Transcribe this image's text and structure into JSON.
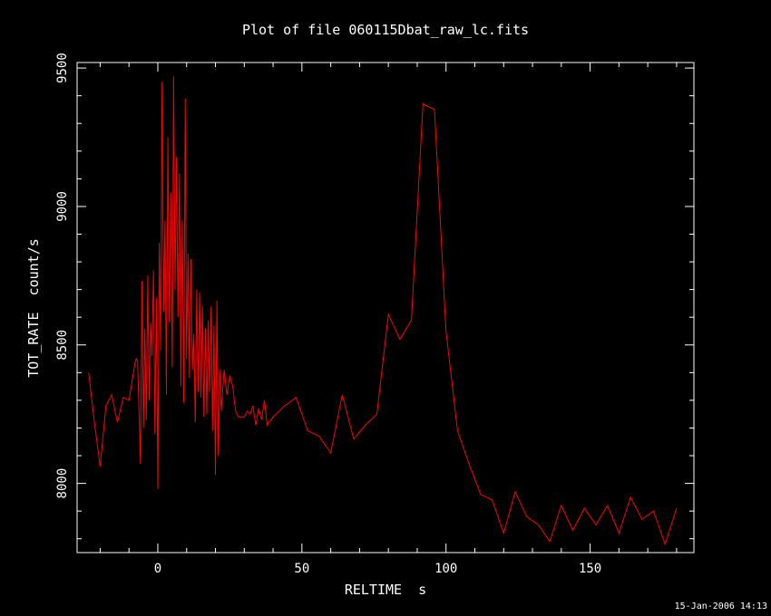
{
  "chart_data": {
    "type": "line",
    "title": "Plot of file 060115Dbat_raw_lc.fits",
    "xlabel": "RELTIME  s",
    "ylabel": "TOT_RATE  count/s",
    "xlim": [
      -28,
      186
    ],
    "ylim": [
      7750,
      9520
    ],
    "xticks": [
      0,
      50,
      100,
      150
    ],
    "xtick_labels": [
      "0",
      "50",
      "100",
      "150"
    ],
    "yticks": [
      8000,
      8500,
      9000,
      9500
    ],
    "ytick_labels": [
      "8000",
      "8500",
      "9000",
      "9500"
    ],
    "line_color": "#ff0000",
    "grid": false,
    "series": [
      {
        "name": "",
        "x": [
          -24,
          -22,
          -20,
          -18,
          -16,
          -14,
          -12,
          -10,
          -8,
          -7.5,
          -7,
          -6.5,
          -6,
          -5.5,
          -5,
          -4.5,
          -4,
          -3.5,
          -3,
          -2.5,
          -2,
          -1.5,
          -1,
          -0.5,
          0,
          0.5,
          1,
          1.5,
          2,
          2.5,
          3,
          3.5,
          4,
          4.5,
          5,
          5.5,
          6,
          6.5,
          7,
          7.5,
          8,
          8.5,
          9,
          9.5,
          10,
          10.5,
          11,
          11.5,
          12,
          12.5,
          13,
          13.5,
          14,
          14.5,
          15,
          15.5,
          16,
          16.5,
          17,
          17.5,
          18,
          18.5,
          19,
          19.5,
          20,
          20.5,
          21,
          21.5,
          22,
          23,
          24,
          25,
          26,
          27,
          28,
          30,
          31,
          32,
          33,
          34,
          35,
          36,
          37,
          38,
          40,
          44,
          48,
          52,
          56,
          60,
          64,
          68,
          72,
          76,
          80,
          84,
          88,
          92,
          96,
          100,
          104,
          108,
          112,
          116,
          120,
          124,
          128,
          132,
          136,
          140,
          144,
          148,
          152,
          156,
          160,
          164,
          168,
          172,
          176,
          180
        ],
        "y": [
          8400,
          8220,
          8060,
          8280,
          8320,
          8220,
          8310,
          8300,
          8430,
          8450,
          8440,
          8260,
          8070,
          8730,
          8200,
          8560,
          8230,
          8750,
          8300,
          8580,
          8460,
          8770,
          8180,
          8670,
          7980,
          8870,
          8480,
          9450,
          8620,
          8950,
          8320,
          9250,
          8580,
          9050,
          8420,
          9470,
          8700,
          9180,
          8600,
          9120,
          8350,
          8950,
          8290,
          9390,
          8450,
          8830,
          8380,
          8810,
          8410,
          8540,
          8220,
          8700,
          8330,
          8690,
          8310,
          8640,
          8240,
          8560,
          8250,
          8590,
          8330,
          8640,
          8190,
          8570,
          8030,
          8660,
          8100,
          8410,
          8260,
          8410,
          8320,
          8390,
          8350,
          8260,
          8240,
          8240,
          8260,
          8250,
          8280,
          8210,
          8270,
          8230,
          8300,
          8210,
          8240,
          8280,
          8310,
          8190,
          8170,
          8110,
          8320,
          8160,
          8210,
          8250,
          8610,
          8520,
          8590,
          9370,
          9350,
          8550,
          8190,
          8070,
          7960,
          7940,
          7820,
          7970,
          7880,
          7850,
          7790,
          7920,
          7830,
          7910,
          7850,
          7920,
          7820,
          7950,
          7870,
          7900,
          7780,
          7910
        ]
      }
    ]
  },
  "footer": {
    "timestamp": "15-Jan-2006 14:13"
  }
}
